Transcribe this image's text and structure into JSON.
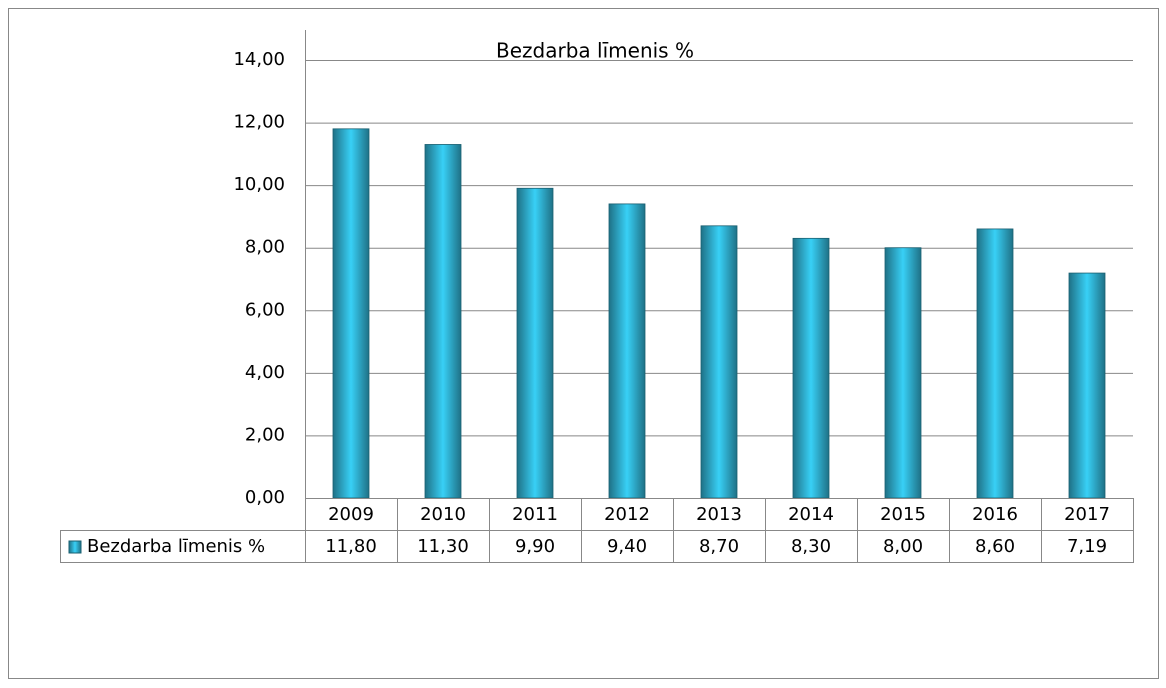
{
  "chart_data": {
    "type": "bar",
    "title": "Bezdarba līmenis %",
    "categories": [
      "2009",
      "2010",
      "2011",
      "2012",
      "2013",
      "2014",
      "2015",
      "2016",
      "2017"
    ],
    "series": [
      {
        "name": "Bezdarba līmenis %",
        "color": "#33bde0",
        "values": [
          11.8,
          11.3,
          9.9,
          9.4,
          8.7,
          8.3,
          8.0,
          8.6,
          7.19
        ],
        "value_labels": [
          "11,80",
          "11,30",
          "9,90",
          "9,40",
          "8,70",
          "8,30",
          "8,00",
          "8,60",
          "7,19"
        ]
      }
    ],
    "ylim": [
      0,
      14
    ],
    "yticks": [
      {
        "value": 0,
        "label": "0,00"
      },
      {
        "value": 2,
        "label": "2,00"
      },
      {
        "value": 4,
        "label": "4,00"
      },
      {
        "value": 6,
        "label": "6,00"
      },
      {
        "value": 8,
        "label": "8,00"
      },
      {
        "value": 10,
        "label": "10,00"
      },
      {
        "value": 12,
        "label": "12,00"
      },
      {
        "value": 14,
        "label": "14,00"
      }
    ],
    "grid": true
  }
}
